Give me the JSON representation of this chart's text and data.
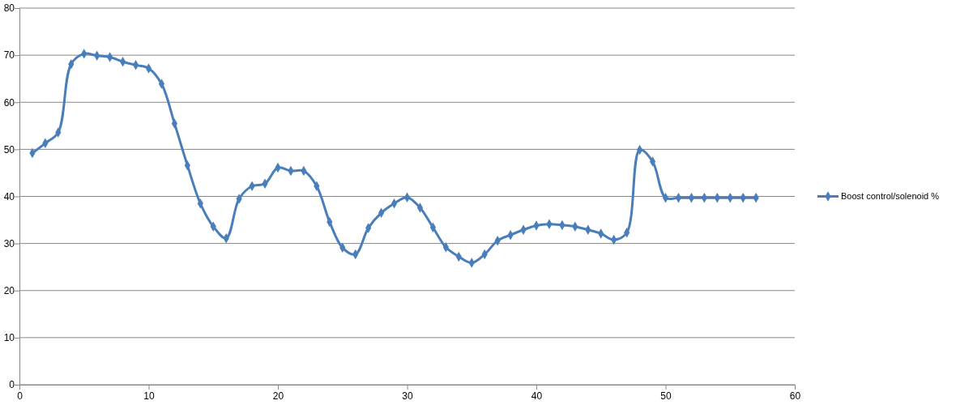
{
  "chart_data": {
    "type": "line",
    "x": [
      1,
      2,
      3,
      4,
      5,
      6,
      7,
      8,
      9,
      10,
      11,
      12,
      13,
      14,
      15,
      16,
      17,
      18,
      19,
      20,
      21,
      22,
      23,
      24,
      25,
      26,
      27,
      28,
      29,
      30,
      31,
      32,
      33,
      34,
      35,
      36,
      37,
      38,
      39,
      40,
      41,
      42,
      43,
      44,
      45,
      46,
      47,
      48,
      49,
      50,
      51,
      52,
      53,
      54,
      55,
      56,
      57
    ],
    "series": [
      {
        "name": "Boost control/solenoid %",
        "color": "#4a7ebb",
        "values": [
          49.2,
          51.3,
          53.6,
          68.1,
          70.3,
          69.9,
          69.6,
          68.6,
          67.9,
          67.2,
          63.9,
          55.5,
          46.6,
          38.5,
          33.6,
          31.1,
          39.5,
          42.2,
          42.7,
          46.1,
          45.4,
          45.4,
          42.2,
          34.6,
          29.1,
          27.7,
          33.3,
          36.5,
          38.5,
          39.8,
          37.6,
          33.4,
          29.2,
          27.2,
          25.9,
          27.7,
          30.6,
          31.8,
          32.9,
          33.8,
          34.1,
          33.9,
          33.6,
          32.9,
          32.1,
          30.8,
          32.3,
          49.9,
          47.4,
          39.7,
          39.7,
          39.7,
          39.7,
          39.7,
          39.7,
          39.7,
          39.7
        ]
      }
    ],
    "xlim": [
      0,
      60
    ],
    "xticks": [
      0,
      10,
      20,
      30,
      40,
      50,
      60
    ],
    "ylim": [
      0,
      80
    ],
    "yticks": [
      0,
      10,
      20,
      30,
      40,
      50,
      60,
      70,
      80
    ],
    "grid": "y",
    "legend": "right",
    "marker": "diamond",
    "line_style": "solid"
  }
}
